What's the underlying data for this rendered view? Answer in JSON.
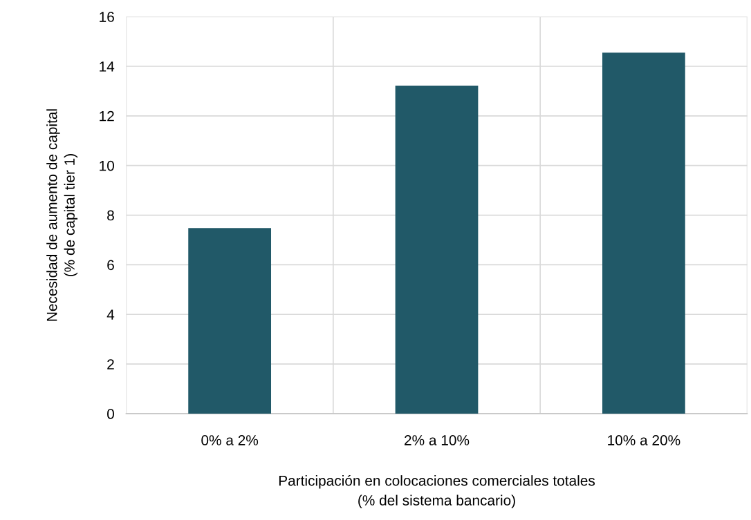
{
  "chart_data": {
    "type": "bar",
    "xlabel": "Participación en colocaciones comerciales totales\n(% del sistema bancario)",
    "ylabel": "Necesidad de aumento de capital\n(% de capital tier 1)",
    "categories": [
      "0% a 2%",
      "2% a 10%",
      "10% a 20%"
    ],
    "values": [
      7.48,
      13.22,
      14.55
    ],
    "color": "#215968",
    "ylim": [
      0,
      16
    ],
    "yticks": [
      0,
      2,
      4,
      6,
      8,
      10,
      12,
      14,
      16
    ],
    "grid": true,
    "legend": false
  }
}
